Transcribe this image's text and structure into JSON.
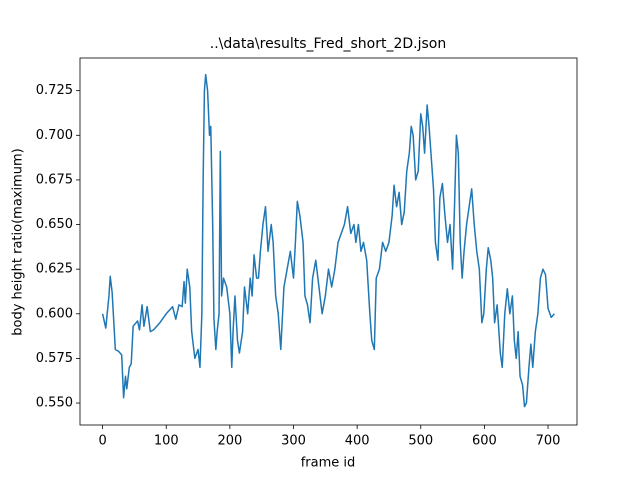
{
  "chart_data": {
    "type": "line",
    "title": "..\\data\\results_Fred_short_2D.json",
    "x_label": "frame id",
    "y_label": "body height ratio(maximum)",
    "xlim": [
      -35.5,
      745.5
    ],
    "xticks": [
      0,
      100,
      200,
      300,
      400,
      500,
      600,
      700
    ],
    "ylim": [
      0.5377,
      0.7433
    ],
    "yticks": [
      {
        "value": 0.55,
        "label": "0.550"
      },
      {
        "value": 0.575,
        "label": "0.575"
      },
      {
        "value": 0.6,
        "label": "0.600"
      },
      {
        "value": 0.625,
        "label": "0.625"
      },
      {
        "value": 0.65,
        "label": "0.650"
      },
      {
        "value": 0.675,
        "label": "0.675"
      },
      {
        "value": 0.7,
        "label": "0.700"
      },
      {
        "value": 0.725,
        "label": "0.725"
      }
    ],
    "grid": false,
    "series": [
      {
        "color": "#1f77b4",
        "x": [
          0,
          5,
          10,
          12,
          15,
          20,
          25,
          30,
          33,
          36,
          38,
          42,
          45,
          48,
          55,
          58,
          62,
          65,
          70,
          75,
          80,
          90,
          100,
          110,
          115,
          120,
          125,
          128,
          130,
          133,
          137,
          140,
          145,
          150,
          153,
          156,
          158,
          160,
          162,
          165,
          168,
          170,
          173,
          175,
          178,
          180,
          183,
          185,
          187,
          190,
          195,
          200,
          203,
          205,
          208,
          212,
          215,
          220,
          223,
          228,
          232,
          235,
          238,
          242,
          245,
          248,
          252,
          256,
          260,
          265,
          268,
          272,
          276,
          280,
          285,
          290,
          295,
          300,
          303,
          306,
          310,
          315,
          318,
          322,
          326,
          330,
          335,
          340,
          345,
          350,
          355,
          360,
          365,
          370,
          375,
          380,
          385,
          390,
          395,
          398,
          402,
          406,
          410,
          415,
          420,
          423,
          427,
          430,
          435,
          440,
          445,
          450,
          455,
          458,
          462,
          466,
          470,
          474,
          478,
          482,
          485,
          488,
          492,
          496,
          500,
          503,
          506,
          510,
          513,
          516,
          520,
          523,
          527,
          530,
          534,
          538,
          542,
          546,
          550,
          553,
          556,
          559,
          562,
          565,
          568,
          572,
          576,
          580,
          584,
          588,
          592,
          596,
          599,
          603,
          606,
          610,
          613,
          616,
          620,
          625,
          628,
          632,
          636,
          640,
          644,
          647,
          650,
          653,
          656,
          660,
          663,
          666,
          670,
          673,
          676,
          680,
          684,
          688,
          692,
          696,
          700,
          705,
          710
        ],
        "values": [
          0.6,
          0.592,
          0.61,
          0.621,
          0.612,
          0.58,
          0.579,
          0.577,
          0.553,
          0.565,
          0.558,
          0.57,
          0.572,
          0.593,
          0.596,
          0.591,
          0.605,
          0.593,
          0.604,
          0.59,
          0.591,
          0.595,
          0.6,
          0.604,
          0.597,
          0.605,
          0.604,
          0.618,
          0.606,
          0.625,
          0.615,
          0.59,
          0.575,
          0.58,
          0.57,
          0.6,
          0.675,
          0.725,
          0.734,
          0.725,
          0.7,
          0.705,
          0.65,
          0.597,
          0.58,
          0.59,
          0.6,
          0.691,
          0.61,
          0.62,
          0.615,
          0.6,
          0.57,
          0.59,
          0.61,
          0.585,
          0.578,
          0.59,
          0.615,
          0.6,
          0.62,
          0.61,
          0.633,
          0.62,
          0.62,
          0.635,
          0.65,
          0.66,
          0.635,
          0.65,
          0.64,
          0.61,
          0.6,
          0.58,
          0.615,
          0.625,
          0.635,
          0.62,
          0.64,
          0.663,
          0.655,
          0.64,
          0.61,
          0.605,
          0.595,
          0.62,
          0.63,
          0.615,
          0.6,
          0.61,
          0.625,
          0.615,
          0.625,
          0.64,
          0.645,
          0.65,
          0.66,
          0.645,
          0.65,
          0.64,
          0.65,
          0.635,
          0.64,
          0.63,
          0.6,
          0.585,
          0.58,
          0.62,
          0.625,
          0.64,
          0.635,
          0.64,
          0.655,
          0.672,
          0.66,
          0.668,
          0.65,
          0.657,
          0.68,
          0.69,
          0.705,
          0.7,
          0.675,
          0.68,
          0.712,
          0.705,
          0.69,
          0.717,
          0.705,
          0.69,
          0.67,
          0.64,
          0.63,
          0.665,
          0.673,
          0.655,
          0.64,
          0.65,
          0.625,
          0.66,
          0.7,
          0.69,
          0.64,
          0.62,
          0.635,
          0.65,
          0.66,
          0.67,
          0.65,
          0.635,
          0.625,
          0.595,
          0.6,
          0.625,
          0.637,
          0.63,
          0.62,
          0.595,
          0.605,
          0.578,
          0.57,
          0.6,
          0.614,
          0.6,
          0.61,
          0.585,
          0.575,
          0.59,
          0.565,
          0.56,
          0.548,
          0.55,
          0.57,
          0.583,
          0.57,
          0.59,
          0.6,
          0.62,
          0.625,
          0.622,
          0.603,
          0.598,
          0.6
        ]
      }
    ]
  }
}
